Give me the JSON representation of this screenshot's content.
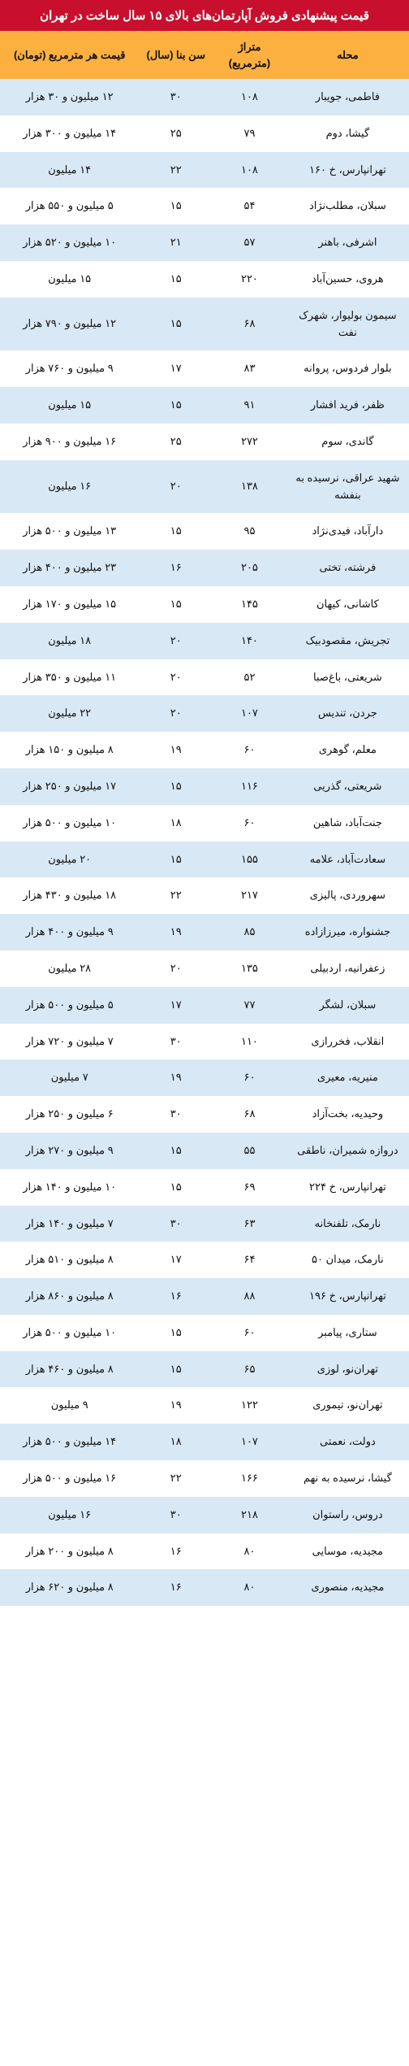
{
  "title": "قیمت پیشنهادی فروش آپارتمان‌های بالای ۱۵ سال ساخت در تهران",
  "colors": {
    "title_bg": "#c8102e",
    "title_text": "#ffffff",
    "header_bg": "#fbb040",
    "row_odd_bg": "#d9e8f5",
    "row_even_bg": "#ffffff",
    "text": "#111111"
  },
  "columns": [
    {
      "key": "neighborhood",
      "label": "محله"
    },
    {
      "key": "area",
      "label": "متراژ (مترمربع)"
    },
    {
      "key": "age",
      "label": "سن بنا (سال)"
    },
    {
      "key": "price",
      "label": "قیمت هر مترمربع (تومان)"
    }
  ],
  "rows": [
    {
      "neighborhood": "فاطمی، جویبار",
      "area": "۱۰۸",
      "age": "۳۰",
      "price": "۱۲ میلیون و ۳۰ هزار"
    },
    {
      "neighborhood": "گیشا، دوم",
      "area": "۷۹",
      "age": "۲۵",
      "price": "۱۴ میلیون و ۳۰۰ هزار"
    },
    {
      "neighborhood": "تهرانپارس، خ ۱۶۰",
      "area": "۱۰۸",
      "age": "۲۲",
      "price": "۱۴ میلیون"
    },
    {
      "neighborhood": "سبلان، مطلب‌نژاد",
      "area": "۵۴",
      "age": "۱۵",
      "price": "۵ میلیون و ۵۵۰ هزار"
    },
    {
      "neighborhood": "اشرفی، باهنر",
      "area": "۵۷",
      "age": "۲۱",
      "price": "۱۰ میلیون و ۵۲۰ هزار"
    },
    {
      "neighborhood": "هروی، حسین‌آباد",
      "area": "۲۲۰",
      "age": "۱۵",
      "price": "۱۵ میلیون"
    },
    {
      "neighborhood": "سیمون بولیوار، شهرک نفت",
      "area": "۶۸",
      "age": "۱۵",
      "price": "۱۲ میلیون و ۷۹۰ هزار"
    },
    {
      "neighborhood": "بلوار فردوس، پروانه",
      "area": "۸۳",
      "age": "۱۷",
      "price": "۹ میلیون و ۷۶۰ هزار"
    },
    {
      "neighborhood": "ظفر، فرید افشار",
      "area": "۹۱",
      "age": "۱۵",
      "price": "۱۵ میلیون"
    },
    {
      "neighborhood": "گاندی، سوم",
      "area": "۲۷۲",
      "age": "۲۵",
      "price": "۱۶ میلیون و ۹۰۰ هزار"
    },
    {
      "neighborhood": "شهید عراقی، نرسیده به بنفشه",
      "area": "۱۳۸",
      "age": "۲۰",
      "price": "۱۶ میلیون"
    },
    {
      "neighborhood": "دارآباد، فیدی‌نژاد",
      "area": "۹۵",
      "age": "۱۵",
      "price": "۱۳ میلیون و ۵۰۰ هزار"
    },
    {
      "neighborhood": "فرشته، تختی",
      "area": "۲۰۵",
      "age": "۱۶",
      "price": "۲۳ میلیون و ۴۰۰ هزار"
    },
    {
      "neighborhood": "کاشانی، کیهان",
      "area": "۱۴۵",
      "age": "۱۵",
      "price": "۱۵ میلیون و ۱۷۰ هزار"
    },
    {
      "neighborhood": "تجریش، مقصودبیک",
      "area": "۱۴۰",
      "age": "۲۰",
      "price": "۱۸ میلیون"
    },
    {
      "neighborhood": "شریعتی، باغ‌صبا",
      "area": "۵۲",
      "age": "۲۰",
      "price": "۱۱ میلیون و ۳۵۰ هزار"
    },
    {
      "neighborhood": "جردن، تندیس",
      "area": "۱۰۷",
      "age": "۲۰",
      "price": "۲۲ میلیون"
    },
    {
      "neighborhood": "معلم، گوهری",
      "area": "۶۰",
      "age": "۱۹",
      "price": "۸ میلیون و ۱۵۰ هزار"
    },
    {
      "neighborhood": "شریعتی، گذریی",
      "area": "۱۱۶",
      "age": "۱۵",
      "price": "۱۷ میلیون و ۲۵۰ هزار"
    },
    {
      "neighborhood": "جنت‌آباد، شاهین",
      "area": "۶۰",
      "age": "۱۸",
      "price": "۱۰ میلیون و ۵۰۰ هزار"
    },
    {
      "neighborhood": "سعادت‌آباد، علامه",
      "area": "۱۵۵",
      "age": "۱۵",
      "price": "۲۰ میلیون"
    },
    {
      "neighborhood": "سهروردی، پالیزی",
      "area": "۲۱۷",
      "age": "۲۲",
      "price": "۱۸ میلیون و ۴۳۰ هزار"
    },
    {
      "neighborhood": "جشنواره، میرزازاده",
      "area": "۸۵",
      "age": "۱۹",
      "price": "۹ میلیون و ۴۰۰ هزار"
    },
    {
      "neighborhood": "زعفرانیه، اردبیلی",
      "area": "۱۳۵",
      "age": "۲۰",
      "price": "۲۸ میلیون"
    },
    {
      "neighborhood": "سبلان، لشگر",
      "area": "۷۷",
      "age": "۱۷",
      "price": "۵ میلیون و ۵۰۰ هزار"
    },
    {
      "neighborhood": "انقلاب، فخررازی",
      "area": "۱۱۰",
      "age": "۳۰",
      "price": "۷ میلیون و ۷۲۰ هزار"
    },
    {
      "neighborhood": "منیریه، معیری",
      "area": "۶۰",
      "age": "۱۹",
      "price": "۷ میلیون"
    },
    {
      "neighborhood": "وحیدیه، بخت‌آزاد",
      "area": "۶۸",
      "age": "۳۰",
      "price": "۶ میلیون و ۲۵۰ هزار"
    },
    {
      "neighborhood": "دروازه شمیران، ناطقی",
      "area": "۵۵",
      "age": "۱۵",
      "price": "۹ میلیون و ۲۷۰ هزار"
    },
    {
      "neighborhood": "تهرانپارس، خ ۲۲۴",
      "area": "۶۹",
      "age": "۱۵",
      "price": "۱۰ میلیون و ۱۴۰ هزار"
    },
    {
      "neighborhood": "نارمک، تلفنخانه",
      "area": "۶۳",
      "age": "۳۰",
      "price": "۷ میلیون و ۱۴۰ هزار"
    },
    {
      "neighborhood": "نارمک، میدان ۵۰",
      "area": "۶۴",
      "age": "۱۷",
      "price": "۸ میلیون و ۵۱۰ هزار"
    },
    {
      "neighborhood": "تهرانپارس، خ ۱۹۶",
      "area": "۸۸",
      "age": "۱۶",
      "price": "۸ میلیون و ۸۶۰ هزار"
    },
    {
      "neighborhood": "ستاری، پیامبر",
      "area": "۶۰",
      "age": "۱۵",
      "price": "۱۰ میلیون و ۵۰۰ هزار"
    },
    {
      "neighborhood": "تهران‌نو، لوزی",
      "area": "۶۵",
      "age": "۱۵",
      "price": "۸ میلیون و ۴۶۰ هزار"
    },
    {
      "neighborhood": "تهران‌نو، تیموری",
      "area": "۱۲۲",
      "age": "۱۹",
      "price": "۹ میلیون"
    },
    {
      "neighborhood": "دولت، نعمتی",
      "area": "۱۰۷",
      "age": "۱۸",
      "price": "۱۴ میلیون و ۵۰۰ هزار"
    },
    {
      "neighborhood": "گیشا، نرسیده به نهم",
      "area": "۱۶۶",
      "age": "۲۲",
      "price": "۱۶ میلیون و ۵۰۰ هزار"
    },
    {
      "neighborhood": "دروس، راستوان",
      "area": "۲۱۸",
      "age": "۳۰",
      "price": "۱۶ میلیون"
    },
    {
      "neighborhood": "مجیدیه، موسایی",
      "area": "۸۰",
      "age": "۱۶",
      "price": "۸ میلیون و ۲۰۰ هزار"
    },
    {
      "neighborhood": "مجیدیه، منصوری",
      "area": "۸۰",
      "age": "۱۶",
      "price": "۸ میلیون و ۶۲۰ هزار"
    }
  ]
}
